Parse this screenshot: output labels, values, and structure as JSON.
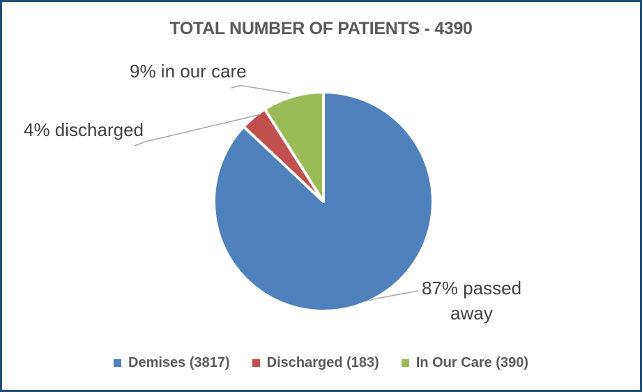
{
  "chart": {
    "title": "TOTAL NUMBER OF PATIENTS - 4390",
    "callouts": {
      "in_our_care": "9% in our care",
      "discharged": "4% discharged",
      "passed_away": "87% passed away"
    }
  },
  "legend": {
    "items": [
      {
        "label": "Demises (3817)",
        "color": "#4F81BD"
      },
      {
        "label": "Discharged (183)",
        "color": "#C0504D"
      },
      {
        "label": "In Our Care (390)",
        "color": "#9BBB59"
      }
    ]
  },
  "chart_data": {
    "type": "pie",
    "title": "TOTAL NUMBER OF PATIENTS - 4390",
    "total": 4390,
    "categories": [
      "Demises",
      "Discharged",
      "In Our Care"
    ],
    "values": [
      3817,
      183,
      390
    ],
    "percentages": [
      87,
      4,
      9
    ],
    "colors": [
      "#4F81BD",
      "#C0504D",
      "#9BBB59"
    ],
    "slice_border_color": "#FFFFFF",
    "leader_line_color": "#A6A6A6",
    "start_angle_deg": 0,
    "direction": "clockwise",
    "legend_position": "bottom",
    "data_labels": [
      "87% passed away",
      "4% discharged",
      "9% in our care"
    ]
  }
}
